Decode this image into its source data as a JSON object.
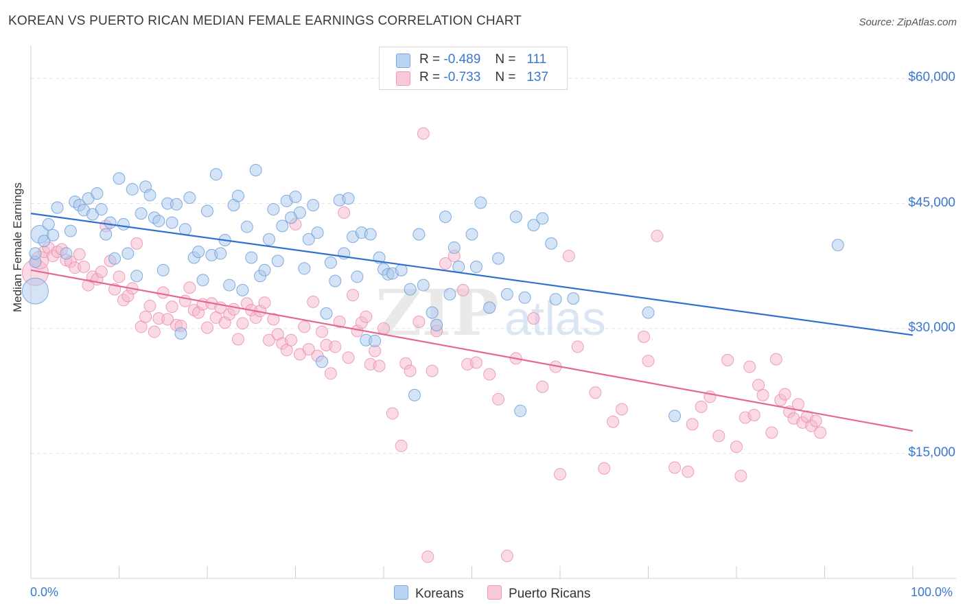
{
  "title": "KOREAN VS PUERTO RICAN MEDIAN FEMALE EARNINGS CORRELATION CHART",
  "source": "Source: ZipAtlas.com",
  "watermark": {
    "zip": "ZIP",
    "atlas": "atlas"
  },
  "legend": {
    "series": [
      {
        "name": "Koreans",
        "r_label": "R =",
        "r_value": "-0.489",
        "n_label": "N =",
        "n_value": "111"
      },
      {
        "name": "Puerto Ricans",
        "r_label": "R =",
        "r_value": "-0.733",
        "n_label": "N =",
        "n_value": "137"
      }
    ]
  },
  "colors": {
    "korean_fill": "#a9c8ee",
    "korean_stroke": "#6b9fd8",
    "korean_line": "#2f6fcf",
    "pr_fill": "#f6b8cc",
    "pr_stroke": "#eb8fae",
    "pr_line": "#e5688f",
    "tick_text": "#3a77cf",
    "grid": "#e3e3e3"
  },
  "chart_data": {
    "type": "scatter",
    "title": "KOREAN VS PUERTO RICAN MEDIAN FEMALE EARNINGS CORRELATION CHART",
    "xlabel": "",
    "ylabel": "Median Female Earnings",
    "xlim": [
      0,
      100
    ],
    "ylim": [
      0,
      63000
    ],
    "x_tick_labels": [
      "0.0%",
      "100.0%"
    ],
    "y_ticks": [
      15000,
      30000,
      45000,
      60000
    ],
    "y_tick_labels": [
      "$15,000",
      "$30,000",
      "$45,000",
      "$60,000"
    ],
    "grid": true,
    "series": [
      {
        "name": "Koreans",
        "trend": {
          "x": [
            0,
            100
          ],
          "y": [
            43800,
            29200
          ]
        },
        "points": [
          [
            0.5,
            34500
          ],
          [
            0.5,
            38000
          ],
          [
            0.5,
            39000
          ],
          [
            1.0,
            41300
          ],
          [
            1.5,
            40500
          ],
          [
            2.0,
            42500
          ],
          [
            2.5,
            41200
          ],
          [
            3.0,
            44500
          ],
          [
            4.0,
            39000
          ],
          [
            4.5,
            41700
          ],
          [
            5.0,
            45200
          ],
          [
            5.5,
            44800
          ],
          [
            6.0,
            44200
          ],
          [
            6.5,
            45600
          ],
          [
            7.0,
            43700
          ],
          [
            7.5,
            46200
          ],
          [
            8.0,
            44300
          ],
          [
            8.5,
            41300
          ],
          [
            9.0,
            42700
          ],
          [
            9.5,
            38400
          ],
          [
            10.0,
            48000
          ],
          [
            10.5,
            42500
          ],
          [
            11.0,
            39000
          ],
          [
            11.5,
            46700
          ],
          [
            12.0,
            36300
          ],
          [
            12.5,
            43800
          ],
          [
            13.0,
            47000
          ],
          [
            13.5,
            46000
          ],
          [
            14.0,
            43300
          ],
          [
            14.5,
            42900
          ],
          [
            15.0,
            37000
          ],
          [
            15.5,
            45000
          ],
          [
            16.0,
            42700
          ],
          [
            16.5,
            44900
          ],
          [
            17.0,
            29400
          ],
          [
            17.5,
            41900
          ],
          [
            18.0,
            45700
          ],
          [
            18.5,
            38500
          ],
          [
            19.0,
            39200
          ],
          [
            19.5,
            35800
          ],
          [
            20.0,
            44100
          ],
          [
            20.5,
            38800
          ],
          [
            21.0,
            48500
          ],
          [
            21.5,
            39000
          ],
          [
            22.0,
            40600
          ],
          [
            22.5,
            35200
          ],
          [
            23.0,
            44800
          ],
          [
            23.5,
            45900
          ],
          [
            24.0,
            34600
          ],
          [
            24.5,
            42200
          ],
          [
            25.0,
            38500
          ],
          [
            25.5,
            49000
          ],
          [
            26.0,
            36300
          ],
          [
            26.5,
            37000
          ],
          [
            27.0,
            40700
          ],
          [
            27.5,
            44300
          ],
          [
            28.0,
            38100
          ],
          [
            28.5,
            42300
          ],
          [
            29.0,
            45300
          ],
          [
            29.5,
            43300
          ],
          [
            30.0,
            45800
          ],
          [
            30.5,
            43900
          ],
          [
            31.0,
            37200
          ],
          [
            31.5,
            40700
          ],
          [
            32.0,
            44800
          ],
          [
            32.5,
            41500
          ],
          [
            33.0,
            26000
          ],
          [
            33.5,
            31800
          ],
          [
            34.0,
            37900
          ],
          [
            34.5,
            35700
          ],
          [
            35.0,
            45400
          ],
          [
            35.5,
            39000
          ],
          [
            36.0,
            45600
          ],
          [
            36.5,
            41000
          ],
          [
            37.0,
            36200
          ],
          [
            37.5,
            41500
          ],
          [
            38.0,
            28600
          ],
          [
            38.5,
            41300
          ],
          [
            39.0,
            28500
          ],
          [
            39.5,
            38500
          ],
          [
            40.0,
            37100
          ],
          [
            40.5,
            36500
          ],
          [
            41.0,
            36600
          ],
          [
            42.0,
            37000
          ],
          [
            43.0,
            34700
          ],
          [
            43.5,
            22000
          ],
          [
            44.0,
            41300
          ],
          [
            44.5,
            35200
          ],
          [
            45.5,
            31900
          ],
          [
            46.0,
            30400
          ],
          [
            47.0,
            43400
          ],
          [
            47.5,
            34100
          ],
          [
            48.0,
            39700
          ],
          [
            48.5,
            37400
          ],
          [
            50.0,
            41300
          ],
          [
            50.5,
            37400
          ],
          [
            51.0,
            45100
          ],
          [
            52.0,
            32500
          ],
          [
            53.0,
            38400
          ],
          [
            54.0,
            34100
          ],
          [
            55.0,
            43400
          ],
          [
            55.5,
            20100
          ],
          [
            56.0,
            33700
          ],
          [
            57.0,
            42400
          ],
          [
            58.0,
            43200
          ],
          [
            59.0,
            40200
          ],
          [
            59.5,
            33500
          ],
          [
            61.5,
            33600
          ],
          [
            70.0,
            31900
          ],
          [
            73.0,
            19500
          ],
          [
            91.5,
            40000
          ]
        ],
        "sizes": {
          "0": "large",
          "3": "medium"
        }
      },
      {
        "name": "Puerto Ricans",
        "trend": {
          "x": [
            0,
            100
          ],
          "y": [
            37000,
            17700
          ]
        },
        "points": [
          [
            0.5,
            36700
          ],
          [
            1.0,
            38200
          ],
          [
            1.5,
            39200
          ],
          [
            2.0,
            39700
          ],
          [
            2.5,
            38700
          ],
          [
            3.0,
            39200
          ],
          [
            3.5,
            39500
          ],
          [
            4.0,
            38200
          ],
          [
            4.5,
            38000
          ],
          [
            5.0,
            37300
          ],
          [
            5.5,
            38900
          ],
          [
            6.0,
            37400
          ],
          [
            6.5,
            35200
          ],
          [
            7.0,
            36200
          ],
          [
            7.5,
            35900
          ],
          [
            8.0,
            36800
          ],
          [
            8.5,
            42300
          ],
          [
            9.0,
            38100
          ],
          [
            9.5,
            34700
          ],
          [
            10.0,
            36200
          ],
          [
            10.5,
            33400
          ],
          [
            11.0,
            33900
          ],
          [
            11.5,
            34800
          ],
          [
            12.0,
            40200
          ],
          [
            12.5,
            30200
          ],
          [
            13.0,
            31400
          ],
          [
            13.5,
            32700
          ],
          [
            14.0,
            29600
          ],
          [
            14.5,
            31200
          ],
          [
            15.0,
            34300
          ],
          [
            15.5,
            31100
          ],
          [
            16.0,
            32600
          ],
          [
            16.5,
            30400
          ],
          [
            17.0,
            30300
          ],
          [
            17.5,
            33300
          ],
          [
            18.0,
            34900
          ],
          [
            18.5,
            32200
          ],
          [
            19.0,
            31900
          ],
          [
            19.5,
            32900
          ],
          [
            20.0,
            30100
          ],
          [
            20.5,
            33000
          ],
          [
            21.0,
            31300
          ],
          [
            21.5,
            32500
          ],
          [
            22.0,
            30700
          ],
          [
            22.5,
            31700
          ],
          [
            23.0,
            32300
          ],
          [
            23.5,
            28700
          ],
          [
            24.0,
            30600
          ],
          [
            24.5,
            33000
          ],
          [
            25.0,
            32200
          ],
          [
            25.5,
            31300
          ],
          [
            26.0,
            32100
          ],
          [
            26.5,
            33100
          ],
          [
            27.0,
            28600
          ],
          [
            27.5,
            31100
          ],
          [
            28.0,
            29300
          ],
          [
            28.5,
            28200
          ],
          [
            29.0,
            27400
          ],
          [
            29.5,
            28600
          ],
          [
            30.0,
            42500
          ],
          [
            30.5,
            26900
          ],
          [
            31.0,
            30200
          ],
          [
            31.5,
            27500
          ],
          [
            32.0,
            33200
          ],
          [
            32.5,
            26700
          ],
          [
            33.0,
            29600
          ],
          [
            33.5,
            28000
          ],
          [
            34.0,
            24600
          ],
          [
            34.5,
            27800
          ],
          [
            35.0,
            30800
          ],
          [
            35.5,
            43900
          ],
          [
            36.0,
            26500
          ],
          [
            36.5,
            34000
          ],
          [
            37.0,
            29700
          ],
          [
            37.5,
            30700
          ],
          [
            38.0,
            31400
          ],
          [
            38.5,
            25700
          ],
          [
            39.0,
            27300
          ],
          [
            39.5,
            25500
          ],
          [
            40.0,
            30000
          ],
          [
            41.0,
            19800
          ],
          [
            42.0,
            15900
          ],
          [
            42.5,
            25800
          ],
          [
            43.0,
            24900
          ],
          [
            44.0,
            30800
          ],
          [
            44.5,
            53400
          ],
          [
            45.0,
            2600
          ],
          [
            45.5,
            24900
          ],
          [
            46.0,
            29700
          ],
          [
            47.0,
            37800
          ],
          [
            48.0,
            38700
          ],
          [
            49.0,
            34600
          ],
          [
            49.5,
            25700
          ],
          [
            50.5,
            25900
          ],
          [
            52.0,
            24500
          ],
          [
            53.0,
            21500
          ],
          [
            54.0,
            2700
          ],
          [
            55.0,
            26400
          ],
          [
            57.0,
            31200
          ],
          [
            58.0,
            23000
          ],
          [
            59.5,
            25400
          ],
          [
            60.0,
            12500
          ],
          [
            61.0,
            38700
          ],
          [
            62.0,
            27800
          ],
          [
            64.0,
            22300
          ],
          [
            65.0,
            13200
          ],
          [
            66.0,
            18800
          ],
          [
            67.0,
            20300
          ],
          [
            69.5,
            29000
          ],
          [
            70.0,
            26100
          ],
          [
            71.0,
            41100
          ],
          [
            73.0,
            13300
          ],
          [
            74.5,
            12800
          ],
          [
            75.0,
            18500
          ],
          [
            76.0,
            20600
          ],
          [
            77.0,
            21800
          ],
          [
            78.0,
            17100
          ],
          [
            79.0,
            26200
          ],
          [
            80.0,
            15800
          ],
          [
            80.5,
            12300
          ],
          [
            81.0,
            19300
          ],
          [
            81.5,
            25400
          ],
          [
            82.0,
            19600
          ],
          [
            82.5,
            23200
          ],
          [
            83.0,
            22000
          ],
          [
            84.0,
            17500
          ],
          [
            84.5,
            26300
          ],
          [
            85.0,
            21400
          ],
          [
            85.5,
            22100
          ],
          [
            86.0,
            20000
          ],
          [
            86.5,
            19200
          ],
          [
            87.0,
            20900
          ],
          [
            87.5,
            18700
          ],
          [
            88.0,
            19400
          ],
          [
            88.5,
            18300
          ],
          [
            89.0,
            18900
          ],
          [
            89.5,
            17500
          ]
        ],
        "sizes": {
          "0": "large",
          "1": "medium"
        }
      }
    ]
  }
}
